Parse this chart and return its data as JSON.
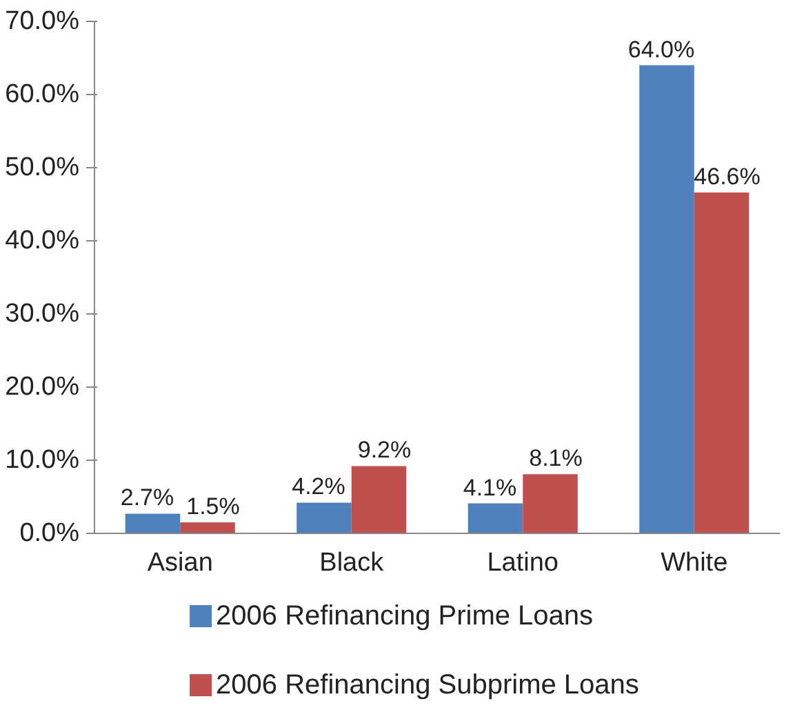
{
  "chart_data": {
    "type": "bar",
    "categories": [
      "Asian",
      "Black",
      "Latino",
      "White"
    ],
    "series": [
      {
        "name": "2006 Refinancing Prime Loans",
        "color": "#4f81bd",
        "values": [
          2.7,
          4.2,
          4.1,
          64.0
        ],
        "value_labels": [
          "2.7%",
          "4.2%",
          "4.1%",
          "64.0%"
        ]
      },
      {
        "name": "2006 Refinancing Subprime Loans",
        "color": "#c0504d",
        "values": [
          1.5,
          9.2,
          8.1,
          46.6
        ],
        "value_labels": [
          "1.5%",
          "9.2%",
          "8.1%",
          "46.6%"
        ]
      }
    ],
    "ylim": [
      0,
      70
    ],
    "yticks": [
      {
        "value": 0,
        "label": "0.0%"
      },
      {
        "value": 10,
        "label": "10.0%"
      },
      {
        "value": 20,
        "label": "20.0%"
      },
      {
        "value": 30,
        "label": "30.0%"
      },
      {
        "value": 40,
        "label": "40.0%"
      },
      {
        "value": 50,
        "label": "50.0%"
      },
      {
        "value": 60,
        "label": "60.0%"
      },
      {
        "value": 70,
        "label": "70.0%"
      }
    ],
    "grid": false,
    "legend": "bottom"
  }
}
